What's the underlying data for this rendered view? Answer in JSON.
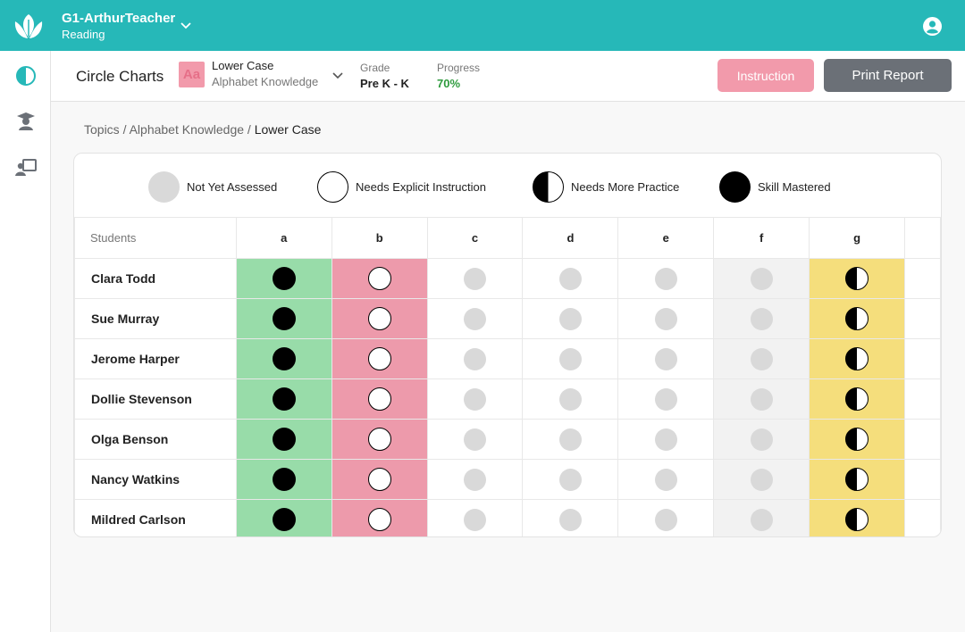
{
  "header": {
    "class_name": "G1-ArthurTeacher",
    "subject": "Reading"
  },
  "subheader": {
    "page_title": "Circle Charts",
    "topic_icon_text": "Aa",
    "topic_title": "Lower Case",
    "topic_subtitle": "Alphabet Knowledge",
    "grade_label": "Grade",
    "grade_value": "Pre K - K",
    "progress_label": "Progress",
    "progress_value": "70%",
    "instruction_label": "Instruction",
    "print_label": "Print Report"
  },
  "breadcrumb": {
    "part1": "Topics",
    "sep1": " / ",
    "part2": "Alphabet Knowledge",
    "sep2": " / ",
    "current": "Lower Case"
  },
  "legend": [
    {
      "label": "Not Yet Assessed",
      "status": "na"
    },
    {
      "label": "Needs Explicit Instruction",
      "status": "explicit"
    },
    {
      "label": "Needs More Practice",
      "status": "practice"
    },
    {
      "label": "Skill Mastered",
      "status": "mastered"
    }
  ],
  "table": {
    "students_header": "Students",
    "columns": [
      "a",
      "b",
      "c",
      "d",
      "e",
      "f",
      "g"
    ],
    "column_colors": [
      "#98dca9",
      "#ed9aab",
      "",
      "",
      "",
      "#f2f2f2",
      "#f5de7c"
    ],
    "rows": [
      {
        "name": "Clara Todd",
        "status": [
          "mastered",
          "explicit",
          "na",
          "na",
          "na",
          "na",
          "practice"
        ]
      },
      {
        "name": "Sue Murray",
        "status": [
          "mastered",
          "explicit",
          "na",
          "na",
          "na",
          "na",
          "practice"
        ]
      },
      {
        "name": "Jerome Harper",
        "status": [
          "mastered",
          "explicit",
          "na",
          "na",
          "na",
          "na",
          "practice"
        ]
      },
      {
        "name": "Dollie Stevenson",
        "status": [
          "mastered",
          "explicit",
          "na",
          "na",
          "na",
          "na",
          "practice"
        ]
      },
      {
        "name": "Olga Benson",
        "status": [
          "mastered",
          "explicit",
          "na",
          "na",
          "na",
          "na",
          "practice"
        ]
      },
      {
        "name": "Nancy Watkins",
        "status": [
          "mastered",
          "explicit",
          "na",
          "na",
          "na",
          "na",
          "practice"
        ]
      },
      {
        "name": "Mildred Carlson",
        "status": [
          "mastered",
          "explicit",
          "na",
          "na",
          "na",
          "na",
          "practice"
        ]
      }
    ]
  },
  "icons": {
    "logo": "leaf-logo-icon",
    "class_switch": "chevron-down-icon",
    "user": "user-account-icon",
    "sidebar": [
      "circle-chart-icon",
      "student-graduate-icon",
      "teacher-board-icon"
    ],
    "topic_switch": "chevron-down-icon"
  },
  "colors": {
    "brand": "#26b8b8",
    "instruction_button": "#f29aab",
    "print_button": "#6b7077",
    "progress": "#2e9b3d"
  }
}
